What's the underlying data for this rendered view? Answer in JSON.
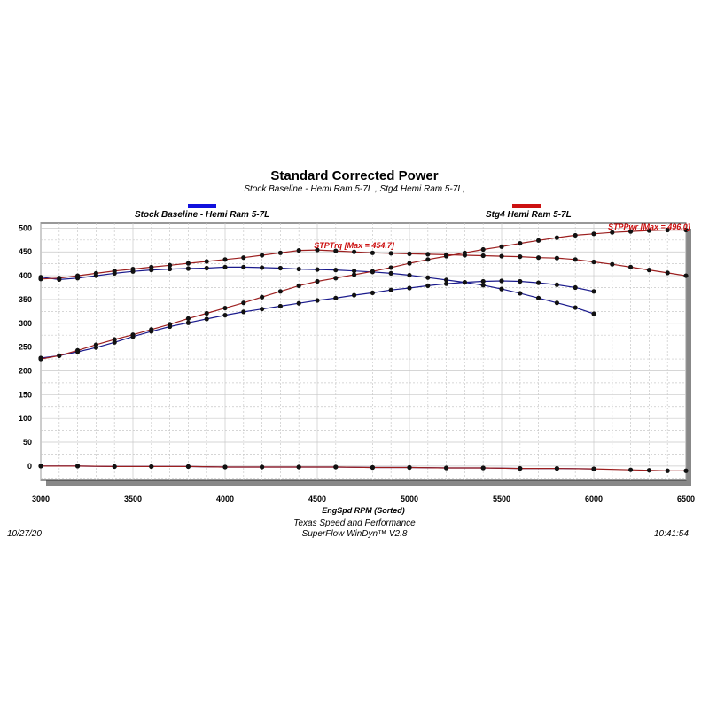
{
  "title": "Standard Corrected Power",
  "subtitle": "Stock Baseline - Hemi Ram 5-7L , Stg4 Hemi Ram 5-7L,",
  "legend": [
    {
      "label": "Stock Baseline - Hemi Ram 5-7L",
      "color": "#1111dd"
    },
    {
      "label": "Stg4 Hemi Ram 5-7L",
      "color": "#cc1111"
    }
  ],
  "footer": {
    "date": "10/27/20",
    "time": "10:41:54",
    "line1": "Texas Speed and Performance",
    "line2": "SuperFlow WinDyn™  V2.8"
  },
  "colors": {
    "stock": "#1a1a8c",
    "stg4": "#9c1f1f",
    "marker": "#111111",
    "grid": "#c8c8c8",
    "shadow": "#888888"
  },
  "chart_data": {
    "type": "line",
    "xlabel": "EngSpd  RPM   (Sorted)",
    "xlim": [
      3000,
      6500
    ],
    "ylim": [
      -30,
      510
    ],
    "xticks": [
      3000,
      3500,
      4000,
      4500,
      5000,
      5500,
      6000,
      6500
    ],
    "yticks": [
      0,
      50,
      100,
      150,
      200,
      250,
      300,
      350,
      400,
      450,
      500
    ],
    "grid": true,
    "annotations": [
      {
        "text": "STPTrq [Max = 454.7]",
        "x": 4700,
        "y": 463
      },
      {
        "text": "STPPwr [Max = 496.0]",
        "x": 6300,
        "y": 503
      }
    ],
    "series": [
      {
        "name": "Stock Baseline - Hemi Ram 5-7L",
        "role": "torque",
        "color_key": "stock",
        "x": [
          3000,
          3100,
          3200,
          3300,
          3400,
          3500,
          3600,
          3700,
          3800,
          3900,
          4000,
          4100,
          4200,
          4300,
          4400,
          4500,
          4600,
          4700,
          4800,
          4900,
          5000,
          5100,
          5200,
          5300,
          5400,
          5500,
          5600,
          5700,
          5800,
          5900,
          6000
        ],
        "y": [
          397,
          392,
          395,
          400,
          405,
          409,
          412,
          414,
          415,
          416,
          418,
          418,
          417,
          416,
          414,
          413,
          412,
          410,
          408,
          405,
          401,
          396,
          391,
          386,
          380,
          372,
          363,
          353,
          343,
          333,
          320
        ]
      },
      {
        "name": "Stock Baseline - Hemi Ram 5-7L",
        "role": "power",
        "color_key": "stock",
        "x": [
          3000,
          3100,
          3200,
          3300,
          3400,
          3500,
          3600,
          3700,
          3800,
          3900,
          4000,
          4100,
          4200,
          4300,
          4400,
          4500,
          4600,
          4700,
          4800,
          4900,
          5000,
          5100,
          5200,
          5300,
          5400,
          5500,
          5600,
          5700,
          5800,
          5900,
          6000
        ],
        "y": [
          227,
          232,
          240,
          249,
          260,
          272,
          283,
          293,
          301,
          309,
          317,
          324,
          330,
          336,
          342,
          348,
          353,
          359,
          364,
          370,
          374,
          379,
          383,
          386,
          388,
          389,
          388,
          385,
          381,
          375,
          367
        ]
      },
      {
        "name": "Stock Baseline - Hemi Ram 5-7L",
        "role": "baseline",
        "color_key": "stock",
        "x": [
          3000,
          3200,
          3400,
          3600,
          3800,
          4000,
          4200,
          4400,
          4600,
          4800,
          5000,
          5200,
          5400,
          5600,
          5800,
          6000
        ],
        "y": [
          0,
          0,
          -1,
          -1,
          -1,
          -2,
          -2,
          -2,
          -2,
          -3,
          -3,
          -4,
          -4,
          -5,
          -5,
          -6
        ]
      },
      {
        "name": "Stg4 Hemi Ram 5-7L",
        "role": "torque",
        "color_key": "stg4",
        "x": [
          3000,
          3100,
          3200,
          3300,
          3400,
          3500,
          3600,
          3700,
          3800,
          3900,
          4000,
          4100,
          4200,
          4300,
          4400,
          4500,
          4600,
          4700,
          4800,
          4900,
          5000,
          5100,
          5200,
          5300,
          5400,
          5500,
          5600,
          5700,
          5800,
          5900,
          6000,
          6100,
          6200,
          6300,
          6400,
          6500
        ],
        "y": [
          393,
          395,
          400,
          405,
          410,
          414,
          418,
          422,
          426,
          430,
          434,
          438,
          443,
          448,
          453,
          454,
          452,
          450,
          448,
          447,
          446,
          445,
          444,
          443,
          442,
          441,
          440,
          438,
          437,
          434,
          429,
          424,
          418,
          412,
          406,
          400
        ]
      },
      {
        "name": "Stg4 Hemi Ram 5-7L",
        "role": "power",
        "color_key": "stg4",
        "x": [
          3000,
          3100,
          3200,
          3300,
          3400,
          3500,
          3600,
          3700,
          3800,
          3900,
          4000,
          4100,
          4200,
          4300,
          4400,
          4500,
          4600,
          4700,
          4800,
          4900,
          5000,
          5100,
          5200,
          5300,
          5400,
          5500,
          5600,
          5700,
          5800,
          5900,
          6000,
          6100,
          6200,
          6300,
          6400,
          6500
        ],
        "y": [
          225,
          232,
          243,
          255,
          266,
          276,
          287,
          298,
          310,
          321,
          332,
          343,
          355,
          367,
          379,
          388,
          395,
          402,
          409,
          417,
          426,
          434,
          441,
          448,
          455,
          461,
          468,
          474,
          480,
          485,
          488,
          491,
          493,
          495,
          496,
          496
        ]
      },
      {
        "name": "Stg4 Hemi Ram 5-7L",
        "role": "baseline",
        "color_key": "stg4",
        "x": [
          3000,
          3200,
          3400,
          3600,
          3800,
          4000,
          4200,
          4400,
          4600,
          4800,
          5000,
          5200,
          5400,
          5600,
          5800,
          6000,
          6200,
          6300,
          6400,
          6500
        ],
        "y": [
          0,
          0,
          -1,
          -1,
          -1,
          -2,
          -2,
          -2,
          -2,
          -3,
          -3,
          -4,
          -4,
          -5,
          -5,
          -6,
          -8,
          -9,
          -10,
          -10
        ]
      }
    ]
  }
}
